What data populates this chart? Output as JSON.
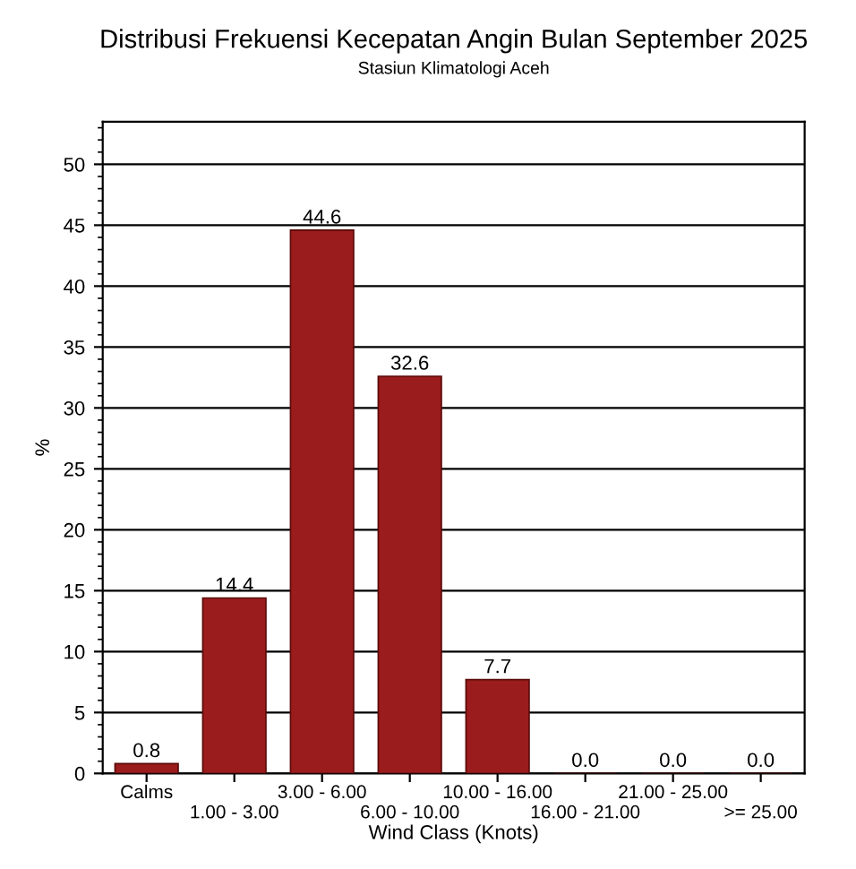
{
  "chart_data": {
    "type": "bar",
    "title": "Distribusi Frekuensi Kecepatan Angin Bulan September 2025",
    "subtitle": "Stasiun Klimatologi Aceh",
    "xlabel": "Wind Class (Knots)",
    "ylabel": "%",
    "categories": [
      "Calms",
      "1.00 - 3.00",
      "3.00 - 6.00",
      "6.00 - 10.00",
      "10.00 - 16.00",
      "16.00 - 21.00",
      "21.00 - 25.00",
      ">= 25.00"
    ],
    "values": [
      0.8,
      14.4,
      44.6,
      32.6,
      7.7,
      0.0,
      0.0,
      0.0
    ],
    "value_labels": [
      "0.8",
      "14.4",
      "44.6",
      "32.6",
      "7.7",
      "0.0",
      "0.0",
      "0.0"
    ],
    "color": "#9b1c1c",
    "ylim": [
      0,
      53.5
    ],
    "yticks": [
      0,
      5,
      10,
      15,
      20,
      25,
      30,
      35,
      40,
      45,
      50
    ],
    "grid": "y",
    "legend": false
  }
}
